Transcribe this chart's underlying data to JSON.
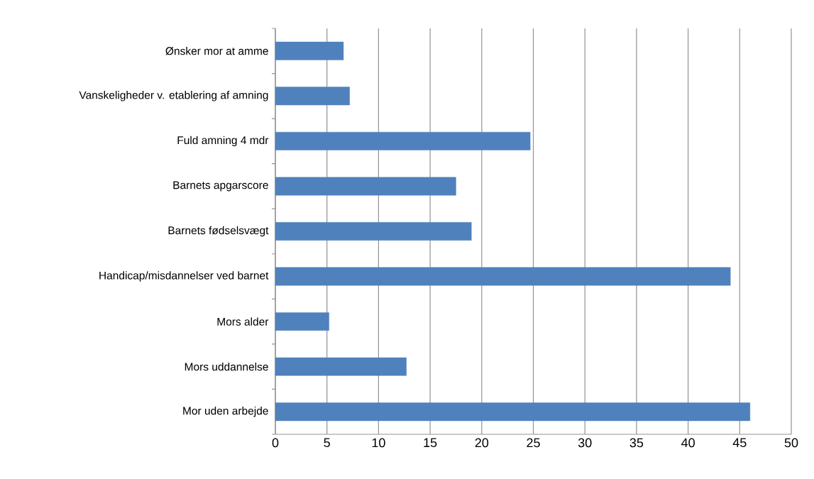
{
  "chart_data": {
    "type": "bar",
    "orientation": "horizontal",
    "categories": [
      "Ønsker mor at amme",
      "Vanskeligheder v. etablering af amning",
      "Fuld amning 4 mdr",
      "Barnets apgarscore",
      "Barnets fødselsvægt",
      "Handicap/misdannelser ved barnet",
      "Mors alder",
      "Mors uddannelse",
      "Mor uden arbejde"
    ],
    "values": [
      6.6,
      7.2,
      24.7,
      17.5,
      19.0,
      44.1,
      5.2,
      12.7,
      46.0
    ],
    "color": "#4f81bd",
    "xlim": [
      0,
      50
    ],
    "xticks": [
      0,
      5,
      10,
      15,
      20,
      25,
      30,
      35,
      40,
      45,
      50
    ],
    "grid": "x"
  }
}
